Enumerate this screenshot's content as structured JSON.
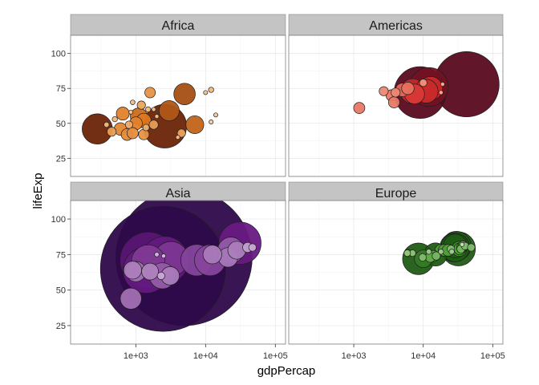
{
  "chart_data": {
    "type": "scatter",
    "title": "",
    "xlabel": "gdpPercap",
    "ylabel": "lifeExp",
    "x_scale": "log10",
    "xlim": [
      116,
      140000
    ],
    "ylim": [
      12,
      113
    ],
    "x_ticks": [
      1000,
      10000,
      100000
    ],
    "x_tick_labels": [
      "1e+03",
      "1e+04",
      "1e+05"
    ],
    "y_ticks": [
      25,
      50,
      75,
      100
    ],
    "y_tick_labels": [
      "25",
      "50",
      "75",
      "100"
    ],
    "grid": true,
    "legend": "none",
    "size_encoding": "population",
    "facets": [
      {
        "label": "Africa",
        "colors": [
          "#6b2407",
          "#e07a20",
          "#fde2bd"
        ],
        "points": [
          {
            "x": 1600,
            "y": 72,
            "p": 8
          },
          {
            "x": 5000,
            "y": 71,
            "p": 33
          },
          {
            "x": 12000,
            "y": 74,
            "p": 2
          },
          {
            "x": 10000,
            "y": 72,
            "p": 1
          },
          {
            "x": 14000,
            "y": 56,
            "p": 0.6
          },
          {
            "x": 12000,
            "y": 51,
            "p": 0.4
          },
          {
            "x": 7000,
            "y": 49,
            "p": 23
          },
          {
            "x": 4500,
            "y": 43,
            "p": 5
          },
          {
            "x": 4000,
            "y": 40,
            "p": 1
          },
          {
            "x": 2600,
            "y": 48,
            "p": 135
          },
          {
            "x": 3000,
            "y": 59,
            "p": 29
          },
          {
            "x": 1200,
            "y": 63,
            "p": 5
          },
          {
            "x": 900,
            "y": 65,
            "p": 1.5
          },
          {
            "x": 1500,
            "y": 60,
            "p": 2
          },
          {
            "x": 850,
            "y": 58,
            "p": 1
          },
          {
            "x": 650,
            "y": 57,
            "p": 12
          },
          {
            "x": 500,
            "y": 53,
            "p": 2
          },
          {
            "x": 1100,
            "y": 55,
            "p": 20
          },
          {
            "x": 1300,
            "y": 52,
            "p": 15
          },
          {
            "x": 1000,
            "y": 50,
            "p": 12
          },
          {
            "x": 800,
            "y": 49,
            "p": 4
          },
          {
            "x": 1400,
            "y": 47,
            "p": 3
          },
          {
            "x": 1800,
            "y": 49,
            "p": 6
          },
          {
            "x": 600,
            "y": 46,
            "p": 11
          },
          {
            "x": 900,
            "y": 43,
            "p": 9
          },
          {
            "x": 1300,
            "y": 42,
            "p": 8
          },
          {
            "x": 750,
            "y": 42,
            "p": 10
          },
          {
            "x": 450,
            "y": 44,
            "p": 6
          },
          {
            "x": 380,
            "y": 49,
            "p": 2
          },
          {
            "x": 280,
            "y": 46,
            "p": 65
          },
          {
            "x": 1800,
            "y": 60,
            "p": 0.6
          },
          {
            "x": 2000,
            "y": 55,
            "p": 1.2
          }
        ]
      },
      {
        "label": "Americas",
        "colors": [
          "#5a0a1e",
          "#d62e2e",
          "#fdd2a8"
        ],
        "points": [
          {
            "x": 42000,
            "y": 78,
            "p": 301
          },
          {
            "x": 9000,
            "y": 72,
            "p": 190
          },
          {
            "x": 12000,
            "y": 76,
            "p": 108
          },
          {
            "x": 12800,
            "y": 75,
            "p": 40
          },
          {
            "x": 11000,
            "y": 73,
            "p": 40
          },
          {
            "x": 7000,
            "y": 73,
            "p": 44
          },
          {
            "x": 7500,
            "y": 71,
            "p": 28
          },
          {
            "x": 10000,
            "y": 79,
            "p": 4
          },
          {
            "x": 19000,
            "y": 78,
            "p": 1
          },
          {
            "x": 18000,
            "y": 72,
            "p": 1
          },
          {
            "x": 6000,
            "y": 75,
            "p": 11
          },
          {
            "x": 5000,
            "y": 74,
            "p": 13
          },
          {
            "x": 4000,
            "y": 72,
            "p": 6
          },
          {
            "x": 3500,
            "y": 70,
            "p": 9
          },
          {
            "x": 3800,
            "y": 65,
            "p": 9
          },
          {
            "x": 2700,
            "y": 73,
            "p": 6
          },
          {
            "x": 1200,
            "y": 61,
            "p": 9
          }
        ]
      },
      {
        "label": "Asia",
        "colors": [
          "#2e0a4a",
          "#6a1b85",
          "#f3e8f7"
        ],
        "points": [
          {
            "x": 4900,
            "y": 73,
            "p": 1319
          },
          {
            "x": 2450,
            "y": 65,
            "p": 1110
          },
          {
            "x": 1500,
            "y": 71,
            "p": 223
          },
          {
            "x": 2600,
            "y": 71,
            "p": 160
          },
          {
            "x": 31000,
            "y": 83,
            "p": 127
          },
          {
            "x": 1400,
            "y": 64,
            "p": 150
          },
          {
            "x": 3200,
            "y": 72,
            "p": 85
          },
          {
            "x": 7400,
            "y": 71,
            "p": 70
          },
          {
            "x": 11600,
            "y": 71,
            "p": 69
          },
          {
            "x": 2400,
            "y": 60,
            "p": 48
          },
          {
            "x": 1000,
            "y": 63,
            "p": 29
          },
          {
            "x": 850,
            "y": 44,
            "p": 32
          },
          {
            "x": 1500,
            "y": 70,
            "p": 80
          },
          {
            "x": 2500,
            "y": 74,
            "p": 0.5
          },
          {
            "x": 23000,
            "y": 78,
            "p": 49
          },
          {
            "x": 12500,
            "y": 75,
            "p": 25
          },
          {
            "x": 40000,
            "y": 80,
            "p": 7
          },
          {
            "x": 47000,
            "y": 80,
            "p": 4
          },
          {
            "x": 21000,
            "y": 73,
            "p": 27
          },
          {
            "x": 28000,
            "y": 78,
            "p": 23
          },
          {
            "x": 1600,
            "y": 63,
            "p": 20
          },
          {
            "x": 3100,
            "y": 60,
            "p": 24
          },
          {
            "x": 900,
            "y": 64,
            "p": 23
          },
          {
            "x": 2300,
            "y": 60,
            "p": 4
          },
          {
            "x": 2000,
            "y": 75,
            "p": 1.5
          }
        ]
      },
      {
        "label": "Europe",
        "colors": [
          "#1f5c14",
          "#52a33a",
          "#e6f5d7"
        ],
        "points": [
          {
            "x": 32000,
            "y": 79,
            "p": 82
          },
          {
            "x": 30000,
            "y": 81,
            "p": 61
          },
          {
            "x": 28000,
            "y": 80,
            "p": 59
          },
          {
            "x": 28800,
            "y": 80,
            "p": 58
          },
          {
            "x": 8500,
            "y": 72,
            "p": 71
          },
          {
            "x": 28800,
            "y": 81,
            "p": 40
          },
          {
            "x": 15000,
            "y": 75,
            "p": 38
          },
          {
            "x": 10000,
            "y": 72,
            "p": 22
          },
          {
            "x": 33000,
            "y": 79,
            "p": 16
          },
          {
            "x": 33600,
            "y": 79,
            "p": 10
          },
          {
            "x": 36000,
            "y": 80,
            "p": 8
          },
          {
            "x": 37500,
            "y": 81,
            "p": 7
          },
          {
            "x": 35000,
            "y": 79,
            "p": 5
          },
          {
            "x": 25000,
            "y": 79,
            "p": 4
          },
          {
            "x": 40000,
            "y": 81,
            "p": 4
          },
          {
            "x": 49000,
            "y": 80,
            "p": 4
          },
          {
            "x": 18000,
            "y": 78,
            "p": 10
          },
          {
            "x": 20000,
            "y": 78,
            "p": 10
          },
          {
            "x": 22800,
            "y": 78,
            "p": 10
          },
          {
            "x": 15400,
            "y": 74,
            "p": 5
          },
          {
            "x": 14000,
            "y": 74,
            "p": 9
          },
          {
            "x": 12600,
            "y": 73,
            "p": 7
          },
          {
            "x": 9800,
            "y": 73,
            "p": 4
          },
          {
            "x": 7000,
            "y": 76,
            "p": 3
          },
          {
            "x": 5900,
            "y": 76,
            "p": 3
          },
          {
            "x": 6000,
            "y": 76,
            "p": 4
          },
          {
            "x": 12000,
            "y": 77,
            "p": 2
          },
          {
            "x": 18000,
            "y": 77,
            "p": 2
          },
          {
            "x": 25700,
            "y": 77,
            "p": 2
          },
          {
            "x": 36200,
            "y": 82,
            "p": 0.3
          }
        ]
      }
    ]
  }
}
